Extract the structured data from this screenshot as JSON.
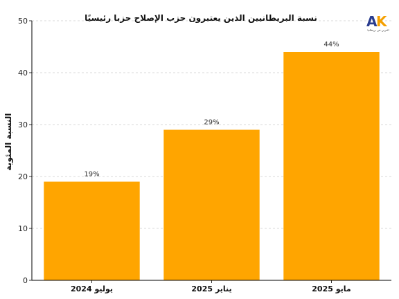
{
  "logo": {
    "mark": "AK",
    "subtitle": "العربي في بريطانيا",
    "colors": {
      "a": "#2a3d8f",
      "k": "#f5a000"
    }
  },
  "colors": {
    "bar": "#FFA500",
    "grid": "#cccccc",
    "axis": "#000000"
  },
  "chart_data": {
    "type": "bar",
    "title": "نسبة البريطانيين الذين يعتبرون حزب الإصلاح حزبا رئيسيًا",
    "xlabel": "",
    "ylabel": "النسبة المئوية",
    "categories": [
      "يوليو 2024",
      "يناير 2025",
      "مايو 2025"
    ],
    "values": [
      19,
      29,
      44
    ],
    "value_labels": [
      "19%",
      "29%",
      "44%"
    ],
    "ylim": [
      0,
      50
    ],
    "yticks": [
      0,
      10,
      20,
      30,
      40,
      50
    ],
    "grid": true,
    "grid_axis": "y",
    "legend": "none"
  }
}
